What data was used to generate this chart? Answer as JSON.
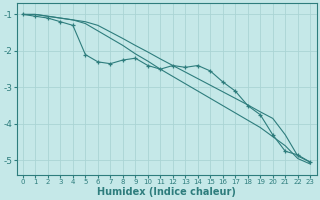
{
  "title": "",
  "xlabel": "Humidex (Indice chaleur)",
  "ylabel": "",
  "bg_color": "#c5e8e8",
  "grid_color": "#aad4d4",
  "line_color": "#2e7d7d",
  "xlim": [
    -0.5,
    23.5
  ],
  "ylim": [
    -5.4,
    -0.7
  ],
  "xticks": [
    0,
    1,
    2,
    3,
    4,
    5,
    6,
    7,
    8,
    9,
    10,
    11,
    12,
    13,
    14,
    15,
    16,
    17,
    18,
    19,
    20,
    21,
    22,
    23
  ],
  "yticks": [
    -1,
    -2,
    -3,
    -4,
    -5
  ],
  "line_jagged_x": [
    0,
    1,
    2,
    3,
    4,
    5,
    6,
    7,
    8,
    9,
    10,
    11,
    12,
    13,
    14,
    15,
    16,
    17,
    18,
    19,
    20,
    21,
    22,
    23
  ],
  "line_jagged_y": [
    -1.0,
    -1.05,
    -1.1,
    -1.2,
    -1.3,
    -2.1,
    -2.3,
    -2.35,
    -2.25,
    -2.2,
    -2.4,
    -2.5,
    -2.4,
    -2.45,
    -2.4,
    -2.55,
    -2.85,
    -3.1,
    -3.5,
    -3.75,
    -4.3,
    -4.75,
    -4.85,
    -5.05
  ],
  "line_upper_x": [
    0,
    1,
    2,
    3,
    4,
    5,
    6,
    7,
    8,
    9,
    10,
    11,
    12,
    13,
    14,
    15,
    16,
    17,
    18,
    19,
    20,
    21,
    22,
    23
  ],
  "line_upper_y": [
    -1.0,
    -1.0,
    -1.05,
    -1.1,
    -1.15,
    -1.2,
    -1.3,
    -1.48,
    -1.66,
    -1.85,
    -2.03,
    -2.22,
    -2.4,
    -2.58,
    -2.76,
    -2.94,
    -3.12,
    -3.3,
    -3.48,
    -3.67,
    -3.85,
    -4.3,
    -4.88,
    -5.05
  ],
  "line_lower_x": [
    0,
    1,
    2,
    3,
    4,
    5,
    6,
    7,
    8,
    9,
    10,
    11,
    12,
    13,
    14,
    15,
    16,
    17,
    18,
    19,
    20,
    21,
    22,
    23
  ],
  "line_lower_y": [
    -1.0,
    -1.0,
    -1.05,
    -1.1,
    -1.15,
    -1.25,
    -1.45,
    -1.65,
    -1.85,
    -2.08,
    -2.28,
    -2.5,
    -2.7,
    -2.9,
    -3.1,
    -3.3,
    -3.5,
    -3.7,
    -3.9,
    -4.1,
    -4.35,
    -4.6,
    -4.95,
    -5.1
  ]
}
